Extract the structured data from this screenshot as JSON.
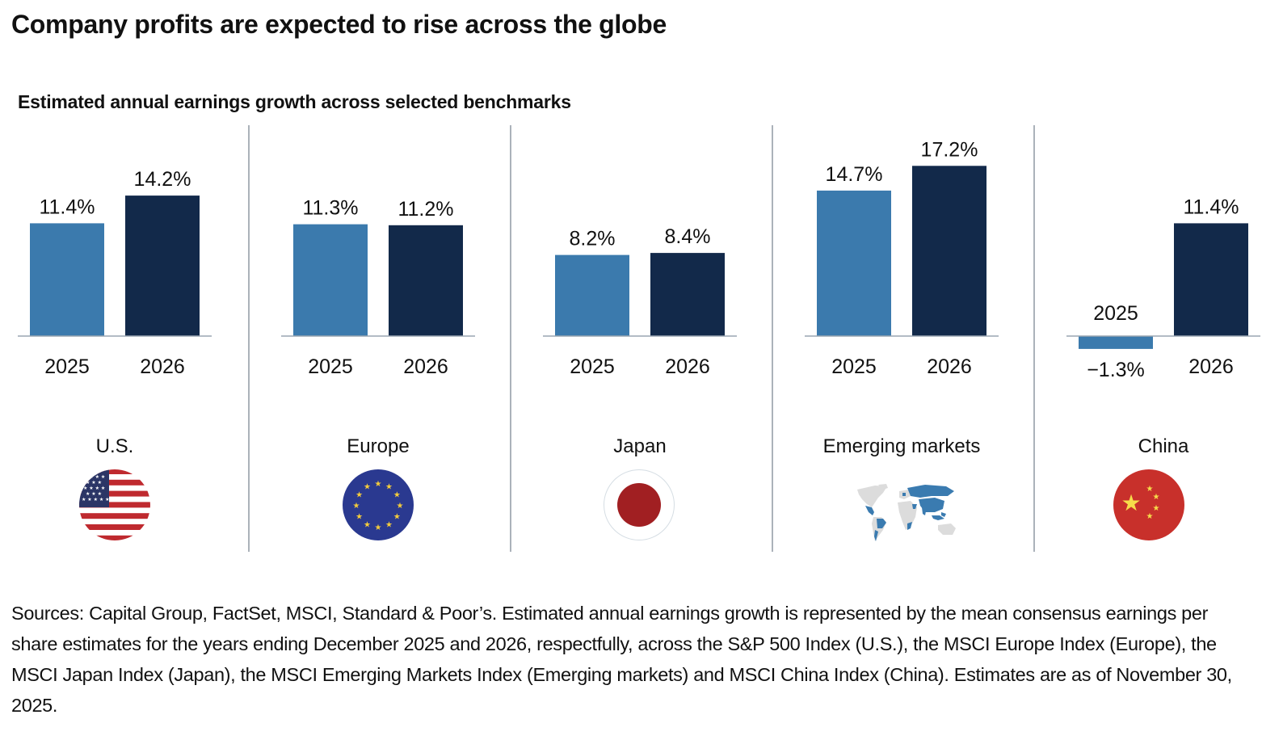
{
  "header": {
    "title": "Company profits are expected to rise across the globe",
    "subtitle": "Estimated annual earnings growth across selected benchmarks"
  },
  "chart_data": {
    "type": "bar",
    "title": "Estimated annual earnings growth across selected benchmarks",
    "xlabel": "",
    "ylabel": "",
    "unit": "%",
    "grid": false,
    "categories": [
      "2025",
      "2026"
    ],
    "series_colors": {
      "2025": "#3b7aad",
      "2026": "#12294a"
    },
    "panels": [
      {
        "region": "U.S.",
        "flag_icon": "us-flag-icon",
        "values": [
          11.4,
          14.2
        ],
        "labels": [
          "11.4%",
          "14.2%"
        ]
      },
      {
        "region": "Europe",
        "flag_icon": "eu-flag-icon",
        "values": [
          11.3,
          11.2
        ],
        "labels": [
          "11.3%",
          "11.2%"
        ]
      },
      {
        "region": "Japan",
        "flag_icon": "japan-flag-icon",
        "values": [
          8.2,
          8.4
        ],
        "labels": [
          "8.2%",
          "8.4%"
        ]
      },
      {
        "region": "Emerging markets",
        "flag_icon": "world-map-icon",
        "values": [
          14.7,
          17.2
        ],
        "labels": [
          "14.7%",
          "17.2%"
        ]
      },
      {
        "region": "China",
        "flag_icon": "china-flag-icon",
        "values": [
          -1.3,
          11.4
        ],
        "labels": [
          "−1.3%",
          "11.4%"
        ]
      }
    ],
    "ylim": [
      -1.5,
      19
    ]
  },
  "footnote": "Sources: Capital Group, FactSet, MSCI, Standard & Poor’s. Estimated annual earnings growth is represented by the mean consensus earnings per share estimates for the years ending December 2025 and 2026, respectfully, across the S&P 500 Index (U.S.), the MSCI Europe Index (Europe), the MSCI Japan Index (Japan), the MSCI Emerging Markets Index (Emerging markets) and MSCI China Index (China). Estimates are as of November 30, 2025."
}
